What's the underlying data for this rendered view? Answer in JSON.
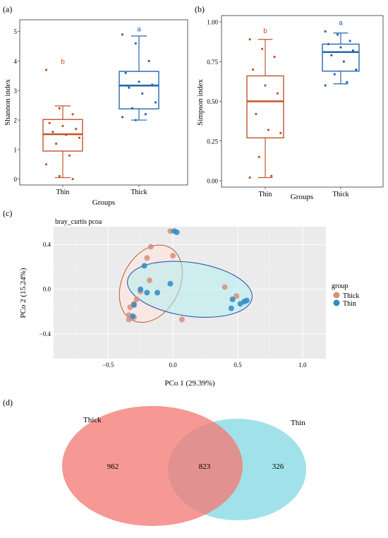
{
  "colors": {
    "thin_box": "#c0552a",
    "thick_box": "#2566b0",
    "pcoa_thick": "#d58f7c",
    "pcoa_thin": "#2d8bc5",
    "venn_thick": "#f47b76",
    "venn_thin": "#6fd3df",
    "ellipse_thin_stroke": "#b56a3d",
    "ellipse_thick_stroke": "#2a5fb0"
  },
  "chart_data": [
    {
      "panel_label": "(a)",
      "type": "box",
      "xlabel": "Groups",
      "ylabel": "Shannon index",
      "ylim": [
        -0.2,
        5.4
      ],
      "yticks": [
        "0",
        "1",
        "2",
        "3",
        "4",
        "5"
      ],
      "categories": [
        "Thin",
        "Thick"
      ],
      "boxes": [
        {
          "name": "Thin",
          "q1": 0.95,
          "median": 1.52,
          "q3": 2.02,
          "whisker_low": 0.05,
          "whisker_high": 2.48,
          "letter": "b",
          "letter_y": 3.9,
          "points": [
            3.7,
            2.4,
            2.2,
            1.9,
            1.8,
            1.7,
            1.6,
            1.5,
            1.4,
            1.2,
            0.8,
            0.5,
            0.1,
            0.0
          ]
        },
        {
          "name": "Thick",
          "q1": 2.38,
          "median": 3.17,
          "q3": 3.65,
          "whisker_low": 2.0,
          "whisker_high": 4.85,
          "letter": "a",
          "letter_y": 5.0,
          "points": [
            4.9,
            4.6,
            4.0,
            3.6,
            3.3,
            3.2,
            3.1,
            2.9,
            2.6,
            2.4,
            2.2,
            2.1,
            2.0
          ]
        }
      ]
    },
    {
      "panel_label": "(b)",
      "type": "box",
      "xlabel": "Groups",
      "ylabel": "Simpson index",
      "ylim": [
        -0.04,
        1.04
      ],
      "yticks": [
        "0.00",
        "0.25",
        "0.50",
        "0.75",
        "1.00"
      ],
      "categories": [
        "Thin",
        "Thick"
      ],
      "boxes": [
        {
          "name": "Thin",
          "q1": 0.27,
          "median": 0.5,
          "q3": 0.66,
          "whisker_low": 0.02,
          "whisker_high": 0.89,
          "letter": "b",
          "letter_y": 0.93,
          "points": [
            0.89,
            0.83,
            0.78,
            0.7,
            0.6,
            0.55,
            0.42,
            0.32,
            0.3,
            0.15,
            0.03,
            0.02
          ]
        },
        {
          "name": "Thick",
          "q1": 0.69,
          "median": 0.81,
          "q3": 0.86,
          "whisker_low": 0.61,
          "whisker_high": 0.93,
          "letter": "a",
          "letter_y": 0.98,
          "points": [
            0.94,
            0.92,
            0.88,
            0.86,
            0.84,
            0.82,
            0.79,
            0.75,
            0.7,
            0.67,
            0.62,
            0.6
          ]
        }
      ]
    },
    {
      "panel_label": "(c)",
      "type": "scatter",
      "title": "bray_curtis pcoa",
      "xlabel": "PCo 1 (29.39%)",
      "ylabel": "PCo 2 (15.24%)",
      "xlim": [
        -0.92,
        1.18
      ],
      "ylim": [
        -0.62,
        0.56
      ],
      "xticks": [
        -0.5,
        0.0,
        0.5,
        1.0
      ],
      "xtick_labels": [
        "−0.5",
        "0.0",
        "0.5",
        "1.0"
      ],
      "yticks": [
        -0.4,
        0.0,
        0.4
      ],
      "ytick_labels": [
        "−0.4",
        "0.0",
        "0.4"
      ],
      "legend_title": "group",
      "legend_position": "right",
      "series": [
        {
          "name": "Thick",
          "points": [
            [
              -0.02,
              0.52
            ],
            [
              0.0,
              0.3
            ],
            [
              -0.17,
              0.38
            ],
            [
              -0.2,
              0.28
            ],
            [
              -0.18,
              0.08
            ],
            [
              -0.25,
              -0.02
            ],
            [
              -0.28,
              -0.09
            ],
            [
              -0.3,
              -0.13
            ],
            [
              -0.33,
              -0.16
            ],
            [
              -0.34,
              -0.23
            ],
            [
              -0.3,
              -0.25
            ],
            [
              -0.34,
              -0.27
            ],
            [
              0.07,
              -0.27
            ],
            [
              0.4,
              0.02
            ],
            [
              0.49,
              -0.06
            ]
          ]
        },
        {
          "name": "Thin",
          "points": [
            [
              0.01,
              0.52
            ],
            [
              0.03,
              0.51
            ],
            [
              -0.22,
              0.21
            ],
            [
              -0.25,
              0.0
            ],
            [
              -0.2,
              -0.03
            ],
            [
              -0.12,
              -0.03
            ],
            [
              -0.02,
              0.05
            ],
            [
              -0.3,
              -0.14
            ],
            [
              -0.31,
              -0.24
            ],
            [
              0.46,
              -0.09
            ],
            [
              0.45,
              -0.17
            ],
            [
              0.52,
              -0.13
            ],
            [
              0.55,
              -0.11
            ],
            [
              0.57,
              -0.1
            ]
          ]
        }
      ],
      "ellipses": [
        {
          "name": "Thin",
          "cx": -0.17,
          "cy": 0.05,
          "rx": 0.63,
          "ry": 0.32,
          "angle": 63
        },
        {
          "name": "Thick",
          "cx": 0.13,
          "cy": 0.0,
          "rx": 0.97,
          "ry": 0.3,
          "angle": -8
        }
      ]
    },
    {
      "panel_label": "(d)",
      "type": "venn",
      "sets": [
        {
          "name": "Thick",
          "only": "962"
        },
        {
          "name": "Thin",
          "only": "326"
        }
      ],
      "shared": "823"
    }
  ]
}
